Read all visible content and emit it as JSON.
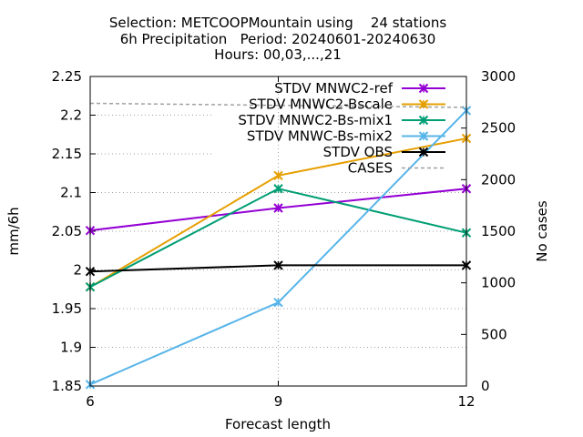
{
  "chart_data": {
    "type": "line",
    "title_lines": [
      "Selection: METCOOPMountain using    24 stations",
      "6h Precipitation   Period: 20240601-20240630",
      "Hours: 00,03,...,21"
    ],
    "xlabel": "Forecast length",
    "ylabel": "mm/6h",
    "y2label": "No cases",
    "x": [
      6,
      9,
      12
    ],
    "xlim": [
      6,
      12
    ],
    "ylim": [
      1.85,
      2.25
    ],
    "y2lim": [
      0,
      3000
    ],
    "x_ticks": [
      6,
      9,
      12
    ],
    "y_ticks": [
      "1.85",
      "1.9",
      "1.95",
      "2",
      "2.05",
      "2.1",
      "2.15",
      "2.2",
      "2.25"
    ],
    "y2_ticks": [
      "0",
      "500",
      "1000",
      "1500",
      "2000",
      "2500",
      "3000"
    ],
    "legend_position": "top-right",
    "series": [
      {
        "name": "STDV MNWC2-ref",
        "color": "#9400d3",
        "values": [
          2.051,
          2.08,
          2.105
        ],
        "axis": "y1",
        "style": "solid"
      },
      {
        "name": "STDV MNWC2-Bscale",
        "color": "#e69f00",
        "values": [
          1.978,
          2.122,
          2.17
        ],
        "axis": "y1",
        "style": "solid"
      },
      {
        "name": "STDV MNWC2-Bs-mix1",
        "color": "#009e73",
        "values": [
          1.978,
          2.105,
          2.048
        ],
        "axis": "y1",
        "style": "solid"
      },
      {
        "name": "STDV MNWC-Bs-mix2",
        "color": "#56b4e9",
        "values": [
          1.852,
          1.958,
          2.206
        ],
        "axis": "y1",
        "style": "solid"
      },
      {
        "name": "STDV OBS",
        "color": "#000000",
        "values": [
          1.998,
          2.006,
          2.006
        ],
        "axis": "y1",
        "style": "solid"
      },
      {
        "name": "CASES",
        "color": "#a0a0a0",
        "values": [
          2740,
          2720,
          2700
        ],
        "axis": "y2",
        "style": "dashed"
      }
    ]
  }
}
